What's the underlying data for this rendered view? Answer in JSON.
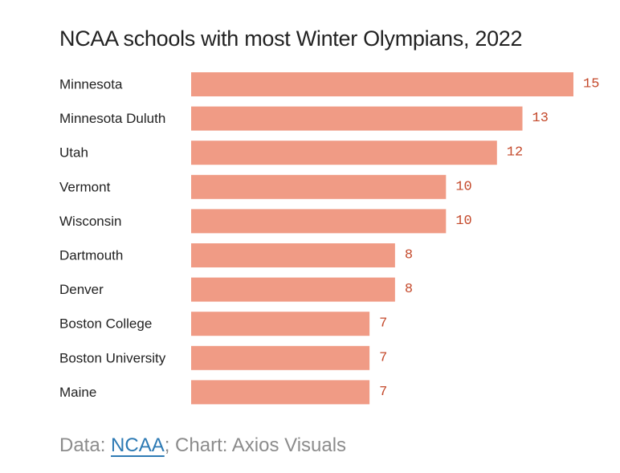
{
  "chart_data": {
    "type": "bar",
    "orientation": "horizontal",
    "title": "NCAA schools with most Winter Olympians, 2022",
    "categories": [
      "Minnesota",
      "Minnesota Duluth",
      "Utah",
      "Vermont",
      "Wisconsin",
      "Dartmouth",
      "Denver",
      "Boston College",
      "Boston University",
      "Maine"
    ],
    "values": [
      15,
      13,
      12,
      10,
      10,
      8,
      8,
      7,
      7,
      7
    ],
    "xlabel": "",
    "ylabel": "",
    "xlim": [
      0,
      15
    ],
    "grid": false,
    "legend": "none",
    "bar_color": "#f09b85",
    "label_color": "#c4492b"
  },
  "footer": {
    "data_prefix": "Data: ",
    "source_link": "NCAA",
    "separator": ";",
    "credit": " Chart: Axios Visuals"
  },
  "colors": {
    "title": "#222222",
    "footer": "#8c8c8c",
    "link": "#2d7ab4"
  }
}
